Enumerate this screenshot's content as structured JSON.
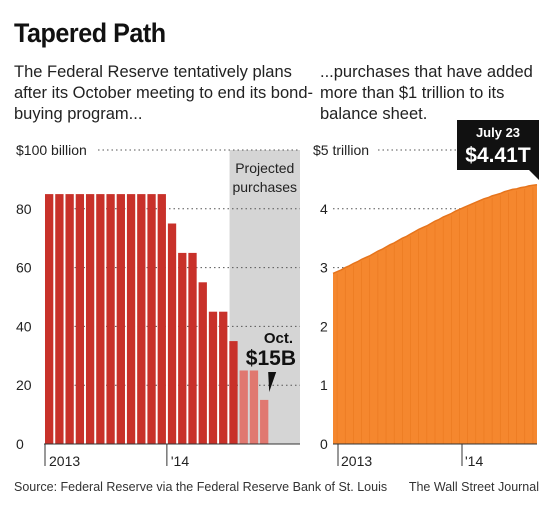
{
  "title": "Tapered Path",
  "left_subtitle": "The Federal Reserve tentatively plans after its October meeting to end its bond-buying program...",
  "right_subtitle": "...purchases that have added more than $1 trillion to its balance sheet.",
  "source": "Source: Federal Reserve via the Federal Reserve Bank of St. Louis",
  "brand": "The Wall Street Journal",
  "colors": {
    "actual_bars": "#c8312a",
    "projected_bars": "#e07870",
    "projected_band": "#d5d5d5",
    "area": "#f5872e",
    "callout_bg": "#111111"
  },
  "chart_data": [
    {
      "type": "bar",
      "ylim": [
        0,
        100
      ],
      "y_ticks": [
        "$100 billion",
        "80",
        "60",
        "40",
        "20",
        "0"
      ],
      "y_tick_values": [
        100,
        80,
        60,
        40,
        20,
        0
      ],
      "x_ticks": [
        "2013",
        "'14"
      ],
      "categories": [
        "Jan 2013",
        "Feb 2013",
        "Mar 2013",
        "Apr 2013",
        "May 2013",
        "Jun 2013",
        "Jul 2013",
        "Aug 2013",
        "Sep 2013",
        "Oct 2013",
        "Nov 2013",
        "Dec 2013",
        "Jan 2014",
        "Feb 2014",
        "Mar 2014",
        "Apr 2014",
        "May 2014",
        "Jun 2014",
        "Jul 2014",
        "Aug 2014",
        "Sep 2014",
        "Oct 2014"
      ],
      "series": [
        {
          "values": [
            85,
            85,
            85,
            85,
            85,
            85,
            85,
            85,
            85,
            85,
            85,
            85,
            75,
            65,
            65,
            55,
            45,
            45,
            35,
            25,
            25,
            15
          ]
        }
      ],
      "projected_start_index": 19,
      "projected_label": "Projected purchases",
      "callout": {
        "label": "Oct.",
        "value": "$15B"
      }
    },
    {
      "type": "area",
      "ylim": [
        0,
        5
      ],
      "y_ticks": [
        "$5 trillion",
        "4",
        "3",
        "2",
        "1",
        "0"
      ],
      "y_tick_values": [
        5,
        4,
        3,
        2,
        1,
        0
      ],
      "x_ticks": [
        "2013",
        "'14"
      ],
      "series": [
        {
          "values": [
            2.9,
            2.93,
            2.96,
            3.0,
            3.03,
            3.07,
            3.1,
            3.14,
            3.17,
            3.2,
            3.24,
            3.28,
            3.31,
            3.35,
            3.39,
            3.42,
            3.46,
            3.5,
            3.53,
            3.57,
            3.61,
            3.65,
            3.68,
            3.71,
            3.75,
            3.79,
            3.82,
            3.86,
            3.89,
            3.92,
            3.96,
            3.99,
            4.02,
            4.05,
            4.08,
            4.11,
            4.14,
            4.17,
            4.19,
            4.22,
            4.24,
            4.26,
            4.29,
            4.31,
            4.33,
            4.34,
            4.36,
            4.37,
            4.39,
            4.4,
            4.41
          ]
        }
      ],
      "callout": {
        "label": "July 23",
        "value": "$4.41T"
      }
    }
  ]
}
